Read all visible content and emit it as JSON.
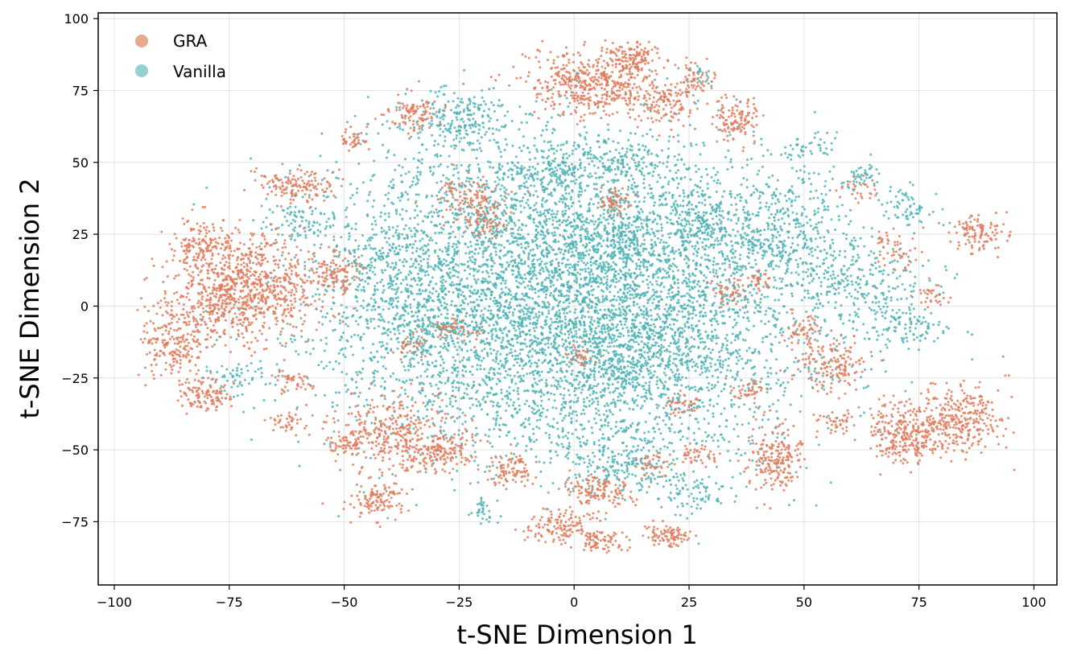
{
  "chart_data": {
    "type": "scatter",
    "title": "",
    "xlabel": "t-SNE Dimension 1",
    "ylabel": "t-SNE Dimension 2",
    "xlim": [
      -103.5,
      105
    ],
    "ylim": [
      -97,
      102
    ],
    "xticks": [
      -100,
      -75,
      -50,
      -25,
      0,
      25,
      50,
      75,
      100
    ],
    "yticks": [
      -75,
      -50,
      -25,
      0,
      25,
      50,
      75,
      100
    ],
    "xtick_labels": [
      "−100",
      "−75",
      "−50",
      "−25",
      "0",
      "25",
      "50",
      "75",
      "100"
    ],
    "ytick_labels": [
      "−75",
      "−50",
      "−25",
      "0",
      "25",
      "50",
      "75",
      "100"
    ],
    "grid": true,
    "legend_position": "top-left",
    "series": [
      {
        "name": "GRA",
        "color": "#E07A5A",
        "legend_color": "#E8A98F",
        "clusters": [
          {
            "x": -72,
            "y": 6,
            "sx": 8,
            "sy": 9,
            "n": 900
          },
          {
            "x": -87,
            "y": -12,
            "sx": 4,
            "sy": 7,
            "n": 220
          },
          {
            "x": -80,
            "y": -31,
            "sx": 3,
            "sy": 3,
            "n": 110
          },
          {
            "x": -81,
            "y": 22,
            "sx": 3,
            "sy": 4,
            "n": 120
          },
          {
            "x": -60,
            "y": 42,
            "sx": 4,
            "sy": 3,
            "n": 140
          },
          {
            "x": -52,
            "y": 12,
            "sx": 3,
            "sy": 4,
            "n": 110
          },
          {
            "x": -35,
            "y": 67,
            "sx": 3,
            "sy": 3,
            "n": 100
          },
          {
            "x": -48,
            "y": 58,
            "sx": 2,
            "sy": 2,
            "n": 40
          },
          {
            "x": -38,
            "y": -45,
            "sx": 7,
            "sy": 7,
            "n": 380
          },
          {
            "x": -43,
            "y": -67,
            "sx": 3,
            "sy": 3,
            "n": 110
          },
          {
            "x": -28,
            "y": -52,
            "sx": 3,
            "sy": 3,
            "n": 100
          },
          {
            "x": -61,
            "y": -26,
            "sx": 2,
            "sy": 2,
            "n": 40
          },
          {
            "x": -62,
            "y": -40,
            "sx": 2,
            "sy": 2,
            "n": 40
          },
          {
            "x": -49,
            "y": -48,
            "sx": 2,
            "sy": 2,
            "n": 50
          },
          {
            "x": -22,
            "y": 36,
            "sx": 4,
            "sy": 4,
            "n": 130
          },
          {
            "x": -26,
            "y": -8,
            "sx": 3,
            "sy": 2,
            "n": 50
          },
          {
            "x": 4,
            "y": 78,
            "sx": 7,
            "sy": 6,
            "n": 480
          },
          {
            "x": 13,
            "y": 86,
            "sx": 3,
            "sy": 3,
            "n": 120
          },
          {
            "x": 20,
            "y": 70,
            "sx": 3,
            "sy": 4,
            "n": 110
          },
          {
            "x": 35,
            "y": 65,
            "sx": 3,
            "sy": 4,
            "n": 120
          },
          {
            "x": 26,
            "y": 78,
            "sx": 2,
            "sy": 3,
            "n": 60
          },
          {
            "x": 9,
            "y": 37,
            "sx": 2,
            "sy": 2,
            "n": 60
          },
          {
            "x": 5,
            "y": -64,
            "sx": 4,
            "sy": 3,
            "n": 130
          },
          {
            "x": -3,
            "y": -77,
            "sx": 4,
            "sy": 3,
            "n": 130
          },
          {
            "x": 6,
            "y": -82,
            "sx": 3,
            "sy": 2,
            "n": 70
          },
          {
            "x": 20,
            "y": -80,
            "sx": 3,
            "sy": 2,
            "n": 90
          },
          {
            "x": -14,
            "y": -57,
            "sx": 3,
            "sy": 3,
            "n": 90
          },
          {
            "x": 17,
            "y": -55,
            "sx": 2,
            "sy": 2,
            "n": 40
          },
          {
            "x": 44,
            "y": -53,
            "sx": 3,
            "sy": 6,
            "n": 200
          },
          {
            "x": 56,
            "y": -20,
            "sx": 4,
            "sy": 5,
            "n": 150
          },
          {
            "x": 50,
            "y": -8,
            "sx": 2,
            "sy": 3,
            "n": 50
          },
          {
            "x": 39,
            "y": -29,
            "sx": 2,
            "sy": 2,
            "n": 40
          },
          {
            "x": 34,
            "y": 5,
            "sx": 2,
            "sy": 3,
            "n": 50
          },
          {
            "x": 40,
            "y": 10,
            "sx": 2,
            "sy": 2,
            "n": 30
          },
          {
            "x": 71,
            "y": -45,
            "sx": 4,
            "sy": 5,
            "n": 230
          },
          {
            "x": 83,
            "y": -40,
            "sx": 6,
            "sy": 6,
            "n": 350
          },
          {
            "x": 88,
            "y": 25,
            "sx": 3,
            "sy": 3,
            "n": 110
          },
          {
            "x": 70,
            "y": 20,
            "sx": 3,
            "sy": 4,
            "n": 50
          },
          {
            "x": 78,
            "y": 3,
            "sx": 2,
            "sy": 2,
            "n": 30
          },
          {
            "x": 57,
            "y": -40,
            "sx": 2,
            "sy": 2,
            "n": 40
          },
          {
            "x": 24,
            "y": -34,
            "sx": 2,
            "sy": 2,
            "n": 40
          },
          {
            "x": 27,
            "y": -52,
            "sx": 2,
            "sy": 2,
            "n": 40
          },
          {
            "x": 62,
            "y": 40,
            "sx": 2,
            "sy": 2,
            "n": 30
          },
          {
            "x": -18,
            "y": 28,
            "sx": 2,
            "sy": 2,
            "n": 40
          },
          {
            "x": 2,
            "y": -18,
            "sx": 2,
            "sy": 2,
            "n": 30
          },
          {
            "x": -35,
            "y": -14,
            "sx": 2,
            "sy": 2,
            "n": 30
          }
        ]
      },
      {
        "name": "Vanilla",
        "color": "#4DB3B5",
        "legend_color": "#94D0D2",
        "clusters": [
          {
            "x": 0,
            "y": 5,
            "sx": 26,
            "sy": 26,
            "n": 4200
          },
          {
            "x": -15,
            "y": 30,
            "sx": 18,
            "sy": 18,
            "n": 700
          },
          {
            "x": 15,
            "y": -25,
            "sx": 18,
            "sy": 18,
            "n": 700
          },
          {
            "x": 20,
            "y": 20,
            "sx": 18,
            "sy": 18,
            "n": 600
          },
          {
            "x": -20,
            "y": -20,
            "sx": 18,
            "sy": 16,
            "n": 600
          },
          {
            "x": -25,
            "y": 65,
            "sx": 5,
            "sy": 5,
            "n": 200
          },
          {
            "x": 10,
            "y": 50,
            "sx": 5,
            "sy": 4,
            "n": 120
          },
          {
            "x": -5,
            "y": 47,
            "sx": 4,
            "sy": 4,
            "n": 100
          },
          {
            "x": 27,
            "y": 30,
            "sx": 4,
            "sy": 4,
            "n": 100
          },
          {
            "x": 62,
            "y": 8,
            "sx": 8,
            "sy": 8,
            "n": 250
          },
          {
            "x": 72,
            "y": -7,
            "sx": 5,
            "sy": 3,
            "n": 100
          },
          {
            "x": 72,
            "y": 35,
            "sx": 3,
            "sy": 3,
            "n": 60
          },
          {
            "x": 52,
            "y": 55,
            "sx": 3,
            "sy": 3,
            "n": 40
          },
          {
            "x": 62,
            "y": 45,
            "sx": 3,
            "sy": 2,
            "n": 40
          },
          {
            "x": 10,
            "y": -55,
            "sx": 5,
            "sy": 5,
            "n": 150
          },
          {
            "x": 25,
            "y": -65,
            "sx": 4,
            "sy": 4,
            "n": 80
          },
          {
            "x": 10,
            "y": -25,
            "sx": 4,
            "sy": 4,
            "n": 100
          },
          {
            "x": -32,
            "y": -8,
            "sx": 4,
            "sy": 4,
            "n": 80
          },
          {
            "x": -60,
            "y": 30,
            "sx": 4,
            "sy": 4,
            "n": 80
          },
          {
            "x": -72,
            "y": -25,
            "sx": 4,
            "sy": 3,
            "n": 60
          },
          {
            "x": -20,
            "y": -72,
            "sx": 2,
            "sy": 2,
            "n": 30
          },
          {
            "x": 28,
            "y": 80,
            "sx": 2,
            "sy": 2,
            "n": 20
          },
          {
            "x": 45,
            "y": 25,
            "sx": 8,
            "sy": 10,
            "n": 300
          },
          {
            "x": -40,
            "y": 10,
            "sx": 8,
            "sy": 12,
            "n": 300
          },
          {
            "x": 10,
            "y": 26,
            "sx": 3,
            "sy": 3,
            "n": 60
          },
          {
            "x": 18,
            "y": -8,
            "sx": 3,
            "sy": 3,
            "n": 60
          }
        ]
      }
    ],
    "legend": [
      {
        "label": "GRA"
      },
      {
        "label": "Vanilla"
      }
    ]
  }
}
